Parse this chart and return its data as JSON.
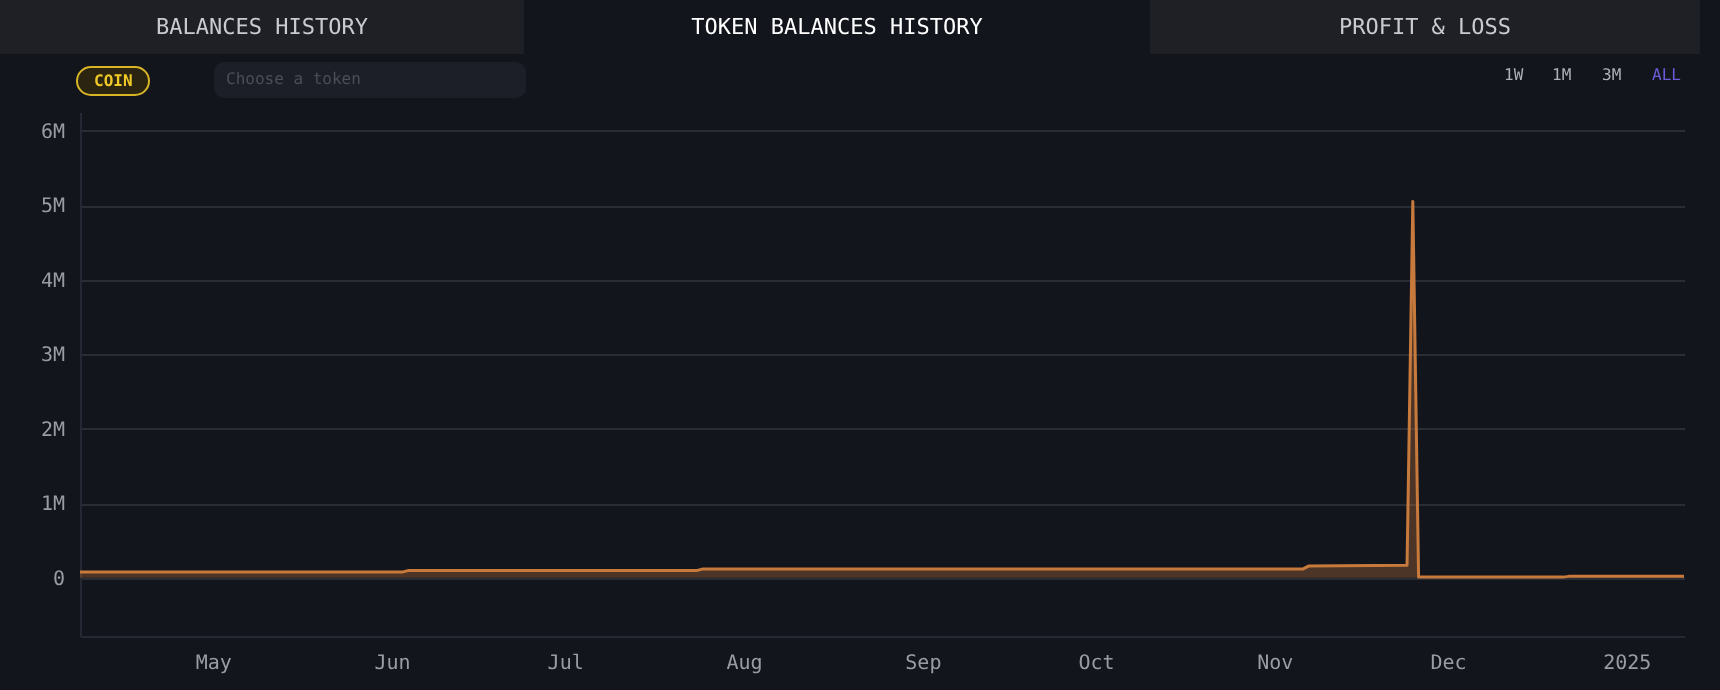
{
  "chart_data": {
    "type": "area",
    "annotations": [
      "BALANCES HISTORY",
      "TOKEN BALANCES HISTORY",
      "PROFIT & LOSS",
      "COIN",
      "Choose a token",
      "1W",
      "1M",
      "3M",
      "ALL"
    ],
    "x": [
      "2024-04-08",
      "2024-06-03",
      "2024-06-04",
      "2024-07-24",
      "2024-07-25",
      "2024-11-06",
      "2024-11-07",
      "2024-11-24",
      "2024-11-25",
      "2024-11-26",
      "2024-12-21",
      "2024-12-22",
      "2025-01-11"
    ],
    "series": [
      {
        "color": "#c87a3c",
        "values": [
          80000,
          80000,
          100000,
          100000,
          120000,
          120000,
          160000,
          170000,
          5050000,
          10000,
          10000,
          20000,
          20000
        ]
      }
    ],
    "xlim": [
      "2024-04-08",
      "2025-01-11"
    ],
    "xticks": [
      {
        "value": "2024-05-01",
        "label": "May"
      },
      {
        "value": "2024-06-01",
        "label": "Jun"
      },
      {
        "value": "2024-07-01",
        "label": "Jul"
      },
      {
        "value": "2024-08-01",
        "label": "Aug"
      },
      {
        "value": "2024-09-01",
        "label": "Sep"
      },
      {
        "value": "2024-10-01",
        "label": "Oct"
      },
      {
        "value": "2024-11-01",
        "label": "Nov"
      },
      {
        "value": "2024-12-01",
        "label": "Dec"
      },
      {
        "value": "2025-01-01",
        "label": "2025"
      }
    ],
    "ylim": [
      -780000,
      6250000
    ],
    "yticks": [
      {
        "value": 0,
        "label": "0"
      },
      {
        "value": 1000000,
        "label": "1M"
      },
      {
        "value": 2000000,
        "label": "2M"
      },
      {
        "value": 3000000,
        "label": "3M"
      },
      {
        "value": 4000000,
        "label": "4M"
      },
      {
        "value": 5000000,
        "label": "5M"
      },
      {
        "value": 6000000,
        "label": "6M"
      }
    ],
    "grid": "y"
  }
}
